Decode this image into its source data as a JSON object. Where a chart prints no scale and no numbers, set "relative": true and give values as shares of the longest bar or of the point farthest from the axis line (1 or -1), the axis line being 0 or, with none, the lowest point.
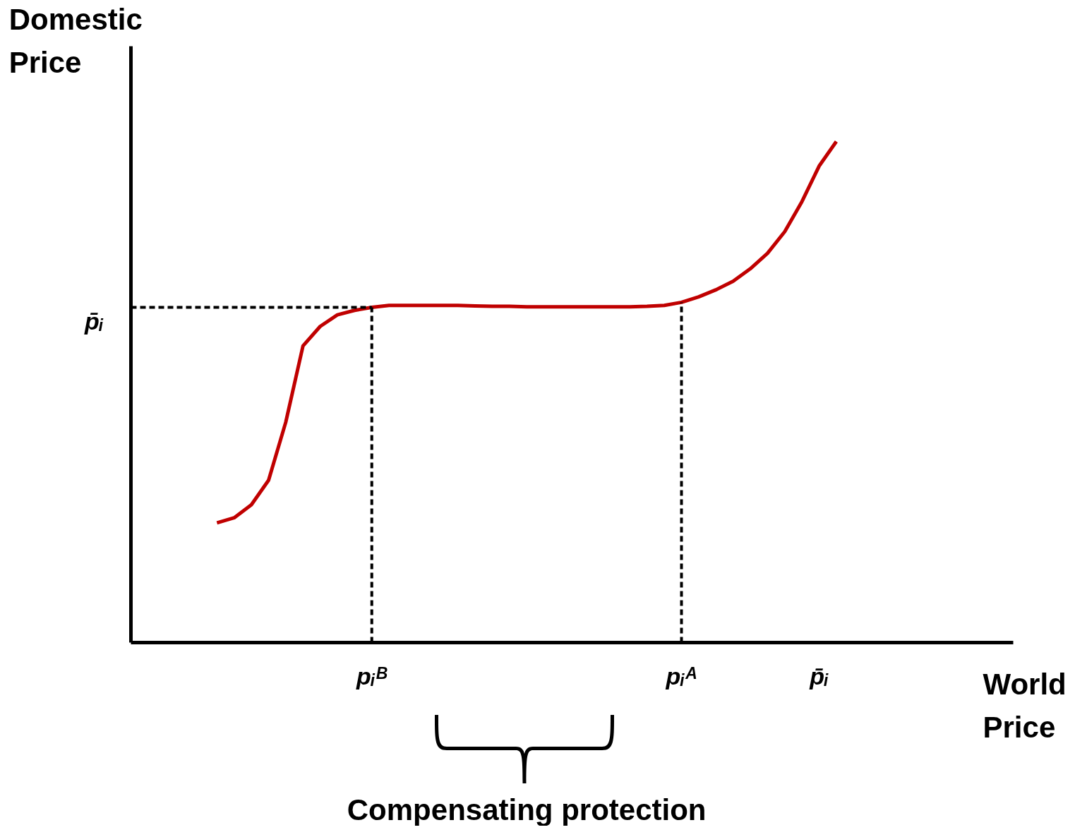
{
  "chart_data": {
    "type": "line",
    "relative": true,
    "xlabel": "World Price",
    "ylabel": "Domestic Price",
    "categories": [
      null,
      null,
      null,
      null,
      null,
      null,
      null,
      null,
      null,
      null,
      null,
      null,
      null,
      null,
      "pᵢᴮ",
      null,
      null,
      null,
      null,
      null,
      null,
      null,
      null,
      null,
      null,
      null,
      null,
      null,
      null,
      null,
      null,
      null,
      "pᵢᴬ",
      null,
      null,
      null,
      null,
      null,
      null,
      null,
      "p̄ᵢ",
      null,
      null,
      null,
      null,
      null,
      null,
      null,
      null,
      null,
      null,
      null
    ],
    "series": [
      {
        "color": "#c00000",
        "values": [
          null,
          null,
          null,
          null,
          null,
          0.239,
          0.249,
          0.275,
          0.324,
          0.44,
          0.592,
          0.631,
          0.654,
          0.663,
          0.669,
          0.673,
          0.673,
          0.673,
          0.673,
          0.673,
          0.672,
          0.671,
          0.671,
          0.67,
          0.67,
          0.67,
          0.67,
          0.67,
          0.67,
          0.67,
          0.671,
          0.673,
          0.679,
          0.69,
          0.704,
          0.721,
          0.746,
          0.777,
          0.82,
          0.88,
          0.951,
          1.0,
          null,
          null,
          null,
          null,
          null,
          null,
          null,
          null,
          null,
          null
        ]
      }
    ],
    "ref_lines": [
      {
        "axis": "y",
        "value": 0.669,
        "label": "p̄ᵢ",
        "line_style": "dashed",
        "color": "#000000"
      },
      {
        "axis": "x",
        "value": "pᵢᴮ",
        "line_style": "dashed",
        "color": "#000000"
      },
      {
        "axis": "x",
        "value": "pᵢᴬ",
        "line_style": "dashed",
        "color": "#000000"
      }
    ],
    "annotations": [
      "Compensating protection"
    ],
    "marker": "none",
    "line_style": "solid"
  }
}
